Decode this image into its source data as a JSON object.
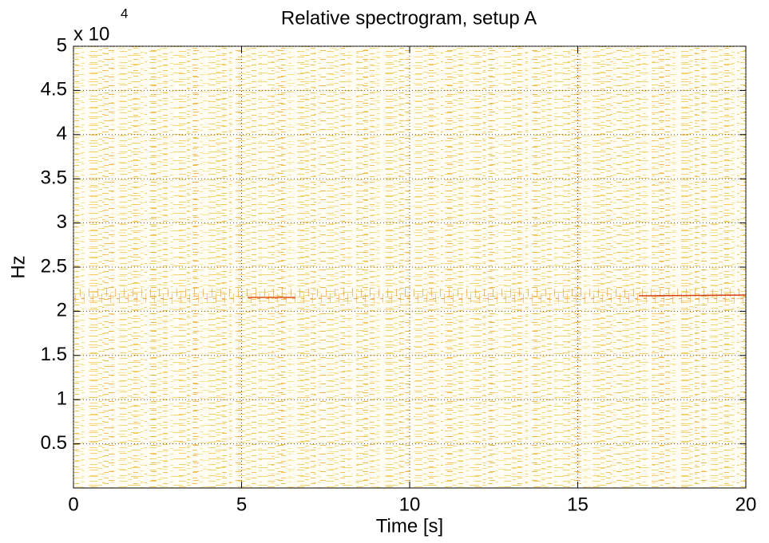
{
  "chart_data": {
    "type": "spectrogram",
    "title": "Relative spectrogram, setup A",
    "xlabel": "Time [s]",
    "ylabel": "Hz",
    "y_multiplier": "x 10",
    "y_exponent": "4",
    "xlim": [
      0,
      20
    ],
    "xticks": [
      0,
      5,
      10,
      15,
      20
    ],
    "ylim": [
      0,
      5
    ],
    "yticks": [
      0.5,
      1,
      1.5,
      2,
      2.5,
      3,
      3.5,
      4,
      4.5,
      5
    ],
    "grid": true
  }
}
